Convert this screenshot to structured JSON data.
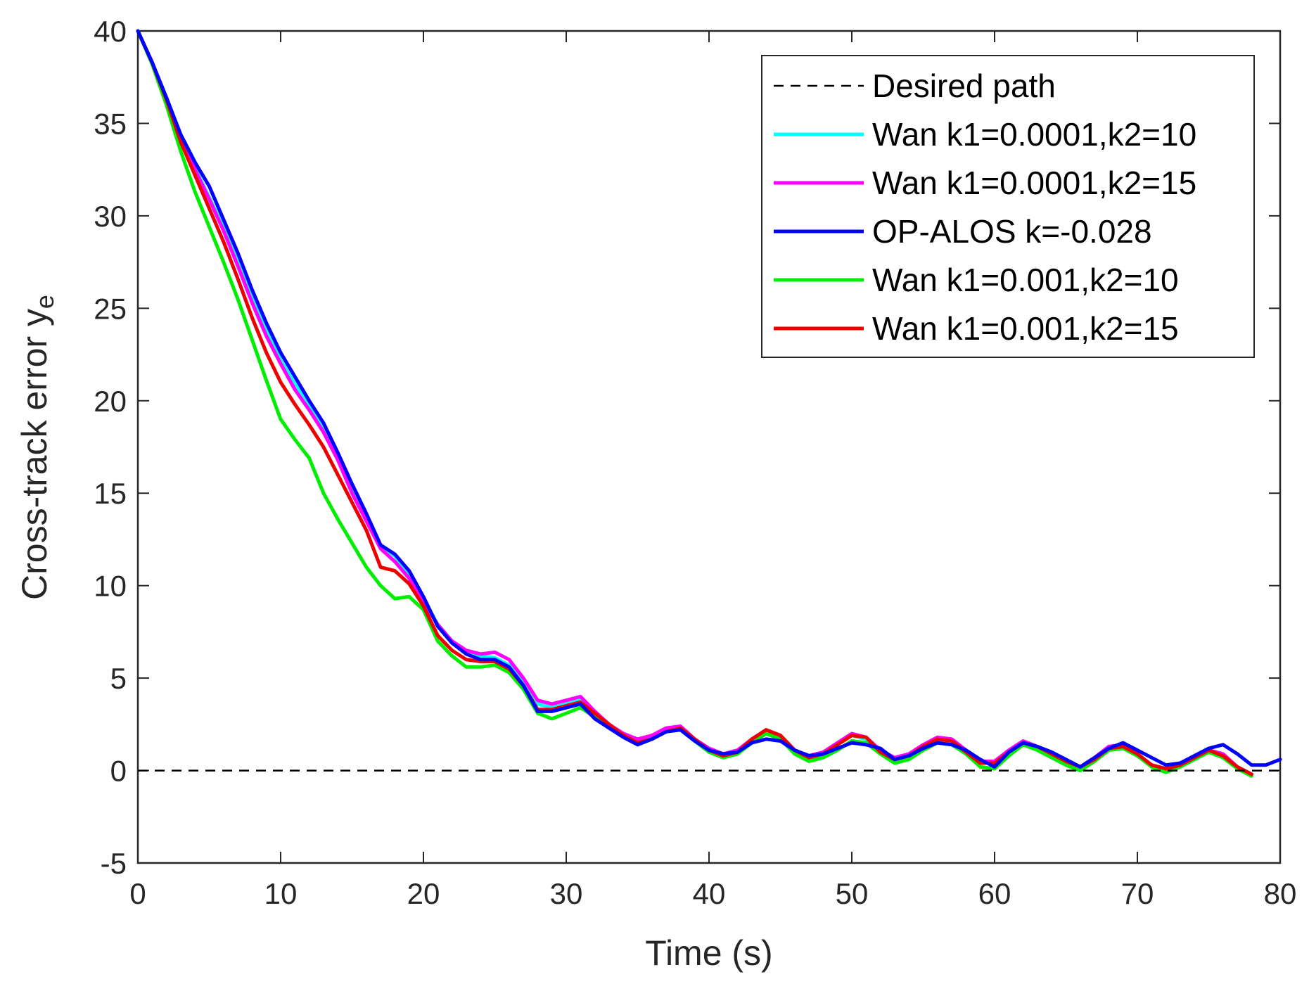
{
  "chart_data": {
    "type": "line",
    "xlabel": "Time (s)",
    "ylabel_main": "Cross-track error y",
    "ylabel_sub": "e",
    "xlim": [
      0,
      80
    ],
    "ylim": [
      -5,
      40
    ],
    "xticks": [
      0,
      10,
      20,
      30,
      40,
      50,
      60,
      70,
      80
    ],
    "yticks": [
      -5,
      0,
      5,
      10,
      15,
      20,
      25,
      30,
      35,
      40
    ],
    "grid": false,
    "legend_position": "top-right",
    "series": [
      {
        "name": "Desired path",
        "color": "#000000",
        "dash": true,
        "x": [
          0,
          80
        ],
        "y": [
          0,
          0
        ]
      },
      {
        "name": "Wan k1=0.0001,k2=10",
        "color": "#00ffff",
        "dash": false,
        "x": [
          0,
          1,
          2,
          3,
          4,
          5,
          6,
          7,
          8,
          9,
          10,
          11,
          12,
          13,
          14,
          15,
          16,
          17,
          18,
          19,
          20,
          21,
          22,
          23,
          24,
          25,
          26,
          27,
          28,
          29,
          30,
          31,
          32,
          33,
          34,
          35,
          36,
          37,
          38,
          39,
          40,
          41,
          42,
          43,
          44,
          45,
          46,
          47,
          48,
          49,
          50,
          51,
          52,
          53,
          54,
          55,
          56,
          57,
          58,
          59,
          60,
          61,
          62,
          63,
          64,
          65,
          66,
          67,
          68,
          69,
          70,
          71,
          72,
          73,
          74,
          75,
          76,
          77,
          78
        ],
        "y": [
          40,
          38.3,
          36.3,
          34.2,
          32.6,
          31.0,
          29.4,
          27.6,
          25.6,
          23.8,
          22.2,
          20.9,
          19.8,
          18.6,
          17.0,
          15.2,
          13.7,
          12.2,
          11.6,
          10.6,
          9.3,
          7.9,
          7.0,
          6.4,
          6.2,
          6.1,
          5.7,
          4.7,
          3.6,
          3.4,
          3.6,
          3.8,
          3.0,
          2.4,
          1.9,
          1.6,
          1.8,
          2.2,
          2.3,
          1.6,
          1.1,
          0.9,
          1.0,
          1.6,
          2.1,
          1.8,
          1.0,
          0.7,
          0.9,
          1.4,
          1.9,
          1.7,
          1.0,
          0.6,
          0.8,
          1.3,
          1.7,
          1.6,
          1.0,
          0.4,
          0.4,
          1.0,
          1.5,
          1.2,
          0.8,
          0.4,
          0.2,
          0.6,
          1.2,
          1.3,
          0.8,
          0.3,
          0.1,
          0.4,
          0.7,
          1.1,
          0.8,
          0.2,
          -0.2
        ]
      },
      {
        "name": "Wan k1=0.0001,k2=15",
        "color": "#ff00ff",
        "dash": false,
        "x": [
          0,
          1,
          2,
          3,
          4,
          5,
          6,
          7,
          8,
          9,
          10,
          11,
          12,
          13,
          14,
          15,
          16,
          17,
          18,
          19,
          20,
          21,
          22,
          23,
          24,
          25,
          26,
          27,
          28,
          29,
          30,
          31,
          32,
          33,
          34,
          35,
          36,
          37,
          38,
          39,
          40,
          41,
          42,
          43,
          44,
          45,
          46,
          47,
          48,
          49,
          50,
          51,
          52,
          53,
          54,
          55,
          56,
          57,
          58,
          59,
          60,
          61,
          62,
          63,
          64,
          65,
          66,
          67,
          68,
          69,
          70,
          71,
          72,
          73,
          74,
          75,
          76,
          77,
          78
        ],
        "y": [
          40,
          38.3,
          36.3,
          34.2,
          32.5,
          30.9,
          29.2,
          27.3,
          25.3,
          23.5,
          22.0,
          20.6,
          19.5,
          18.3,
          16.8,
          15.0,
          13.5,
          12.0,
          11.3,
          10.4,
          9.1,
          7.9,
          7.0,
          6.5,
          6.3,
          6.4,
          6.0,
          5.0,
          3.8,
          3.6,
          3.8,
          4.0,
          3.2,
          2.5,
          2.0,
          1.7,
          1.9,
          2.3,
          2.4,
          1.7,
          1.2,
          0.9,
          1.1,
          1.7,
          2.2,
          1.9,
          1.1,
          0.8,
          1.0,
          1.5,
          2.0,
          1.8,
          1.1,
          0.7,
          0.9,
          1.4,
          1.8,
          1.7,
          1.1,
          0.5,
          0.5,
          1.1,
          1.6,
          1.3,
          0.9,
          0.5,
          0.2,
          0.7,
          1.3,
          1.4,
          0.9,
          0.3,
          0.0,
          0.3,
          0.7,
          1.1,
          0.9,
          0.2,
          -0.2
        ]
      },
      {
        "name": "OP-ALOS k=-0.028",
        "color": "#0000ff",
        "dash": false,
        "x": [
          0,
          1,
          2,
          3,
          4,
          5,
          6,
          7,
          8,
          9,
          10,
          11,
          12,
          13,
          14,
          15,
          16,
          17,
          18,
          19,
          20,
          21,
          22,
          23,
          24,
          25,
          26,
          27,
          28,
          29,
          30,
          31,
          32,
          33,
          34,
          35,
          36,
          37,
          38,
          39,
          40,
          41,
          42,
          43,
          44,
          45,
          46,
          47,
          48,
          49,
          50,
          51,
          52,
          53,
          54,
          55,
          56,
          57,
          58,
          59,
          60,
          61,
          62,
          63,
          64,
          65,
          66,
          67,
          68,
          69,
          70,
          71,
          72,
          73,
          74,
          75,
          76,
          77,
          78,
          79,
          80
        ],
        "y": [
          40,
          38.3,
          36.4,
          34.4,
          32.9,
          31.6,
          29.8,
          28.0,
          26.0,
          24.2,
          22.6,
          21.3,
          20.0,
          18.8,
          17.2,
          15.5,
          13.9,
          12.2,
          11.7,
          10.8,
          9.4,
          7.8,
          6.9,
          6.3,
          6.0,
          6.0,
          5.6,
          4.6,
          3.2,
          3.2,
          3.4,
          3.6,
          2.8,
          2.3,
          1.8,
          1.4,
          1.7,
          2.1,
          2.2,
          1.6,
          1.1,
          0.9,
          1.0,
          1.5,
          1.7,
          1.6,
          1.1,
          0.8,
          0.9,
          1.2,
          1.5,
          1.4,
          1.2,
          0.6,
          0.8,
          1.2,
          1.5,
          1.4,
          1.1,
          0.6,
          0.2,
          1.0,
          1.5,
          1.3,
          1.0,
          0.6,
          0.2,
          0.7,
          1.2,
          1.5,
          1.1,
          0.7,
          0.3,
          0.4,
          0.8,
          1.2,
          1.4,
          0.9,
          0.3,
          0.3,
          0.6
        ]
      },
      {
        "name": "Wan k1=0.001,k2=10",
        "color": "#00ee00",
        "dash": false,
        "x": [
          0,
          1,
          2,
          3,
          4,
          5,
          6,
          7,
          8,
          9,
          10,
          11,
          12,
          13,
          14,
          15,
          16,
          17,
          18,
          19,
          20,
          21,
          22,
          23,
          24,
          25,
          26,
          27,
          28,
          29,
          30,
          31,
          32,
          33,
          34,
          35,
          36,
          37,
          38,
          39,
          40,
          41,
          42,
          43,
          44,
          45,
          46,
          47,
          48,
          49,
          50,
          51,
          52,
          53,
          54,
          55,
          56,
          57,
          58,
          59,
          60,
          61,
          62,
          63,
          64,
          65,
          66,
          67,
          68,
          69,
          70,
          71,
          72,
          73,
          74,
          75,
          76,
          77,
          78
        ],
        "y": [
          40,
          38.2,
          36.0,
          33.5,
          31.3,
          29.4,
          27.5,
          25.5,
          23.3,
          21.1,
          19.0,
          17.9,
          16.9,
          15.0,
          13.6,
          12.3,
          11.0,
          10.0,
          9.3,
          9.4,
          8.7,
          7.0,
          6.2,
          5.6,
          5.6,
          5.7,
          5.3,
          4.4,
          3.1,
          2.8,
          3.1,
          3.4,
          2.9,
          2.3,
          1.9,
          1.5,
          1.7,
          2.1,
          2.2,
          1.6,
          1.0,
          0.7,
          0.9,
          1.5,
          2.0,
          1.7,
          0.9,
          0.5,
          0.7,
          1.1,
          1.6,
          1.5,
          0.9,
          0.4,
          0.6,
          1.1,
          1.5,
          1.4,
          0.9,
          0.2,
          0.1,
          0.8,
          1.4,
          1.1,
          0.7,
          0.3,
          0.0,
          0.5,
          1.1,
          1.2,
          0.8,
          0.2,
          -0.1,
          0.2,
          0.6,
          1.0,
          0.7,
          0.1,
          -0.3
        ]
      },
      {
        "name": "Wan k1=0.001,k2=15",
        "color": "#ee0000",
        "dash": false,
        "x": [
          0,
          1,
          2,
          3,
          4,
          5,
          6,
          7,
          8,
          9,
          10,
          11,
          12,
          13,
          14,
          15,
          16,
          17,
          18,
          19,
          20,
          21,
          22,
          23,
          24,
          25,
          26,
          27,
          28,
          29,
          30,
          31,
          32,
          33,
          34,
          35,
          36,
          37,
          38,
          39,
          40,
          41,
          42,
          43,
          44,
          45,
          46,
          47,
          48,
          49,
          50,
          51,
          52,
          53,
          54,
          55,
          56,
          57,
          58,
          59,
          60,
          61,
          62,
          63,
          64,
          65,
          66,
          67,
          68,
          69,
          70,
          71,
          72,
          73,
          74,
          75,
          76,
          77,
          78
        ],
        "y": [
          40,
          38.3,
          36.3,
          34.0,
          32.2,
          30.4,
          28.6,
          26.6,
          24.5,
          22.6,
          21.0,
          19.8,
          18.7,
          17.5,
          16.0,
          14.5,
          13.0,
          11.0,
          10.8,
          10.1,
          8.9,
          7.3,
          6.5,
          6.0,
          5.9,
          5.9,
          5.5,
          4.6,
          3.3,
          3.3,
          3.5,
          3.7,
          3.1,
          2.5,
          1.9,
          1.5,
          1.7,
          2.1,
          2.3,
          1.7,
          1.1,
          0.8,
          1.0,
          1.7,
          2.2,
          1.9,
          1.1,
          0.7,
          0.9,
          1.4,
          1.9,
          1.8,
          1.0,
          0.6,
          0.8,
          1.3,
          1.7,
          1.6,
          1.0,
          0.4,
          0.4,
          1.0,
          1.5,
          1.3,
          0.9,
          0.5,
          0.2,
          0.6,
          1.2,
          1.3,
          0.9,
          0.3,
          0.1,
          0.3,
          0.7,
          1.1,
          0.8,
          0.2,
          -0.2
        ]
      }
    ]
  }
}
